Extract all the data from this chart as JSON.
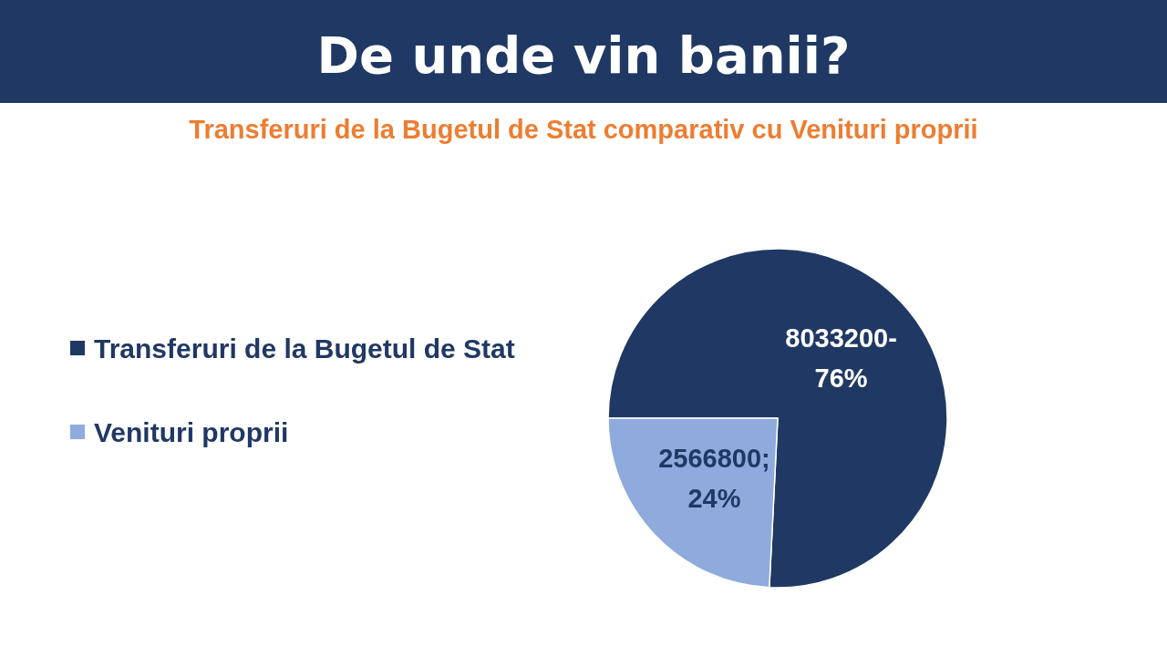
{
  "chart_data": {
    "type": "pie",
    "title": "De unde vin banii?",
    "subtitle": "Transferuri de la Bugetul de Stat comparativ cu Venituri proprii",
    "categories": [
      "Transferuri de la Bugetul de Stat",
      "Venituri proprii"
    ],
    "values": [
      8033200,
      2566800
    ],
    "colors": [
      "#203864",
      "#8faadc"
    ],
    "value_labels": [
      "8033200-\n76%",
      "2566800;\n24%"
    ],
    "legend": "left"
  }
}
